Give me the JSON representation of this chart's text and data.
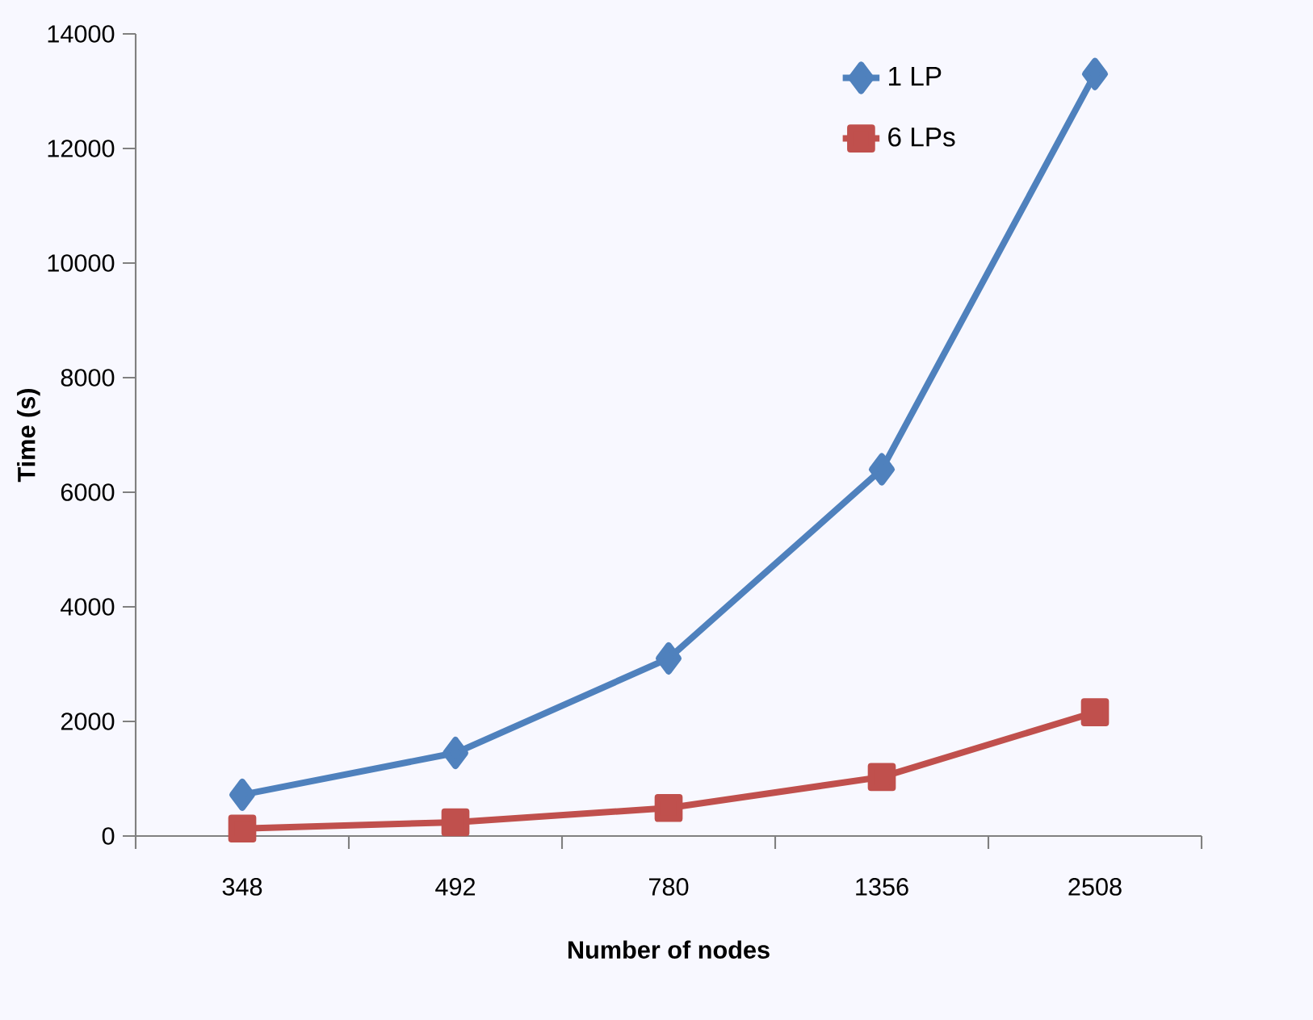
{
  "chart_data": {
    "type": "line",
    "xlabel": "Number of nodes",
    "ylabel": "Time (s)",
    "categories": [
      "348",
      "492",
      "780",
      "1356",
      "2508"
    ],
    "series": [
      {
        "name": "1 LP",
        "color": "#4f81bd",
        "marker": "diamond",
        "values": [
          720,
          1450,
          3100,
          6400,
          13300
        ]
      },
      {
        "name": "6 LPs",
        "color": "#c0504d",
        "marker": "square",
        "values": [
          130,
          240,
          490,
          1030,
          2160
        ]
      }
    ],
    "ylim": [
      0,
      14000
    ],
    "yticks": [
      0,
      2000,
      4000,
      6000,
      8000,
      10000,
      12000,
      14000
    ],
    "legend": "top right"
  }
}
